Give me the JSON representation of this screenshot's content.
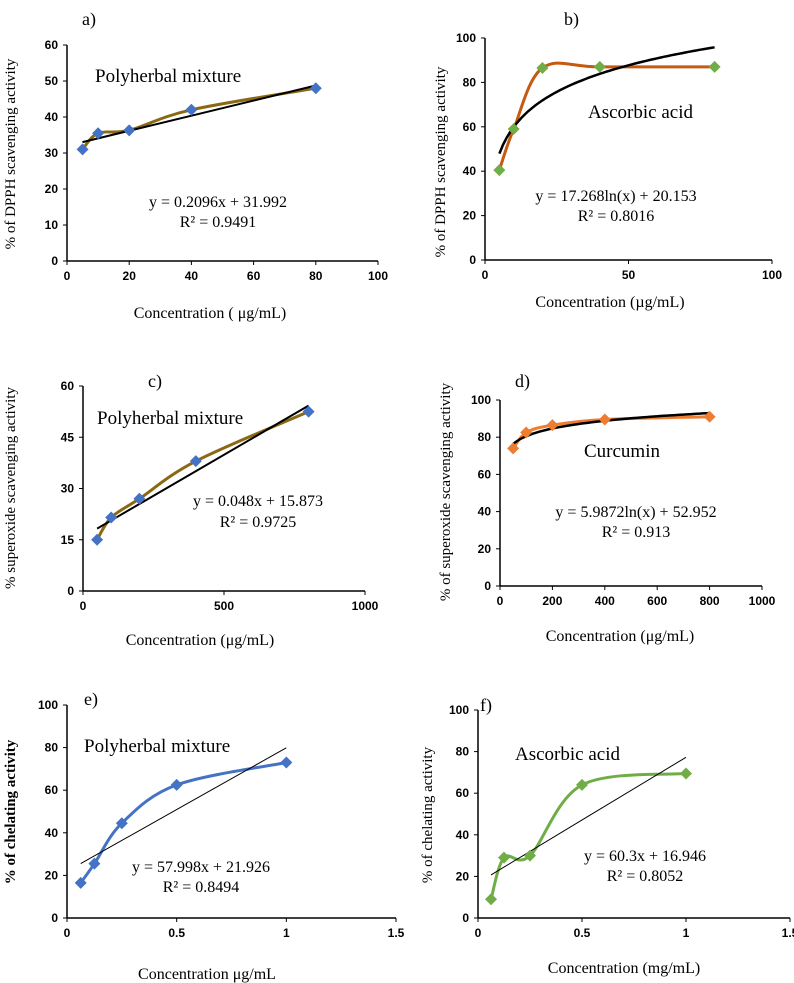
{
  "chart_data": [
    {
      "id": "a",
      "type": "scatter",
      "panel_label": "a)",
      "title": "Polyherbal mixture",
      "xlabel": "Concentration ( μg/mL)",
      "ylabel": "% of DPPH scavenging activity",
      "bold_ylabel": false,
      "xlim": [
        0,
        100
      ],
      "ylim": [
        0,
        60
      ],
      "xticks": [
        0,
        20,
        40,
        60,
        80,
        100
      ],
      "yticks": [
        0,
        10,
        20,
        30,
        40,
        50,
        60
      ],
      "x": [
        5,
        10,
        20,
        40,
        80
      ],
      "y": [
        31,
        35.5,
        36.3,
        42,
        48
      ],
      "smooth": true,
      "trend": {
        "kind": "linear",
        "a": 0.2096,
        "b": 31.992,
        "x_from": 5,
        "x_to": 80
      },
      "equation": "y = 0.2096x + 31.992",
      "r2": "R² = 0.9491",
      "marker": "diamond",
      "marker_color": "#4472c4",
      "curve_color": "#8b6914",
      "trend_color": "#000000",
      "trend_width": 2
    },
    {
      "id": "b",
      "type": "scatter",
      "panel_label": "b)",
      "title": "Ascorbic acid",
      "xlabel": "Concentration (µg/mL)",
      "ylabel": "% of DPPH scavenging activity",
      "bold_ylabel": false,
      "xlim": [
        0,
        100
      ],
      "ylim": [
        0,
        100
      ],
      "xticks": [
        0,
        50,
        100
      ],
      "yticks": [
        0,
        20,
        40,
        60,
        80,
        100
      ],
      "x": [
        5,
        10,
        20,
        40,
        80
      ],
      "y": [
        40.5,
        59,
        86.5,
        87,
        87
      ],
      "smooth": true,
      "trend": {
        "kind": "log",
        "a": 17.268,
        "b": 20.153,
        "x_from": 5,
        "x_to": 80
      },
      "equation": "y = 17.268ln(x) + 20.153",
      "r2": "R² = 0.8016",
      "marker": "diamond",
      "marker_color": "#70ad47",
      "curve_color": "#c55a11",
      "trend_color": "#000000",
      "trend_width": 2.5
    },
    {
      "id": "c",
      "type": "scatter",
      "panel_label": "c)",
      "title": "Polyherbal mixture",
      "xlabel": "Concentration (μg/mL)",
      "ylabel": "% superoxide scavenging activity",
      "bold_ylabel": false,
      "xlim": [
        0,
        1000
      ],
      "ylim": [
        0,
        60
      ],
      "xticks": [
        0,
        500,
        1000
      ],
      "yticks": [
        0,
        15,
        30,
        45,
        60
      ],
      "x": [
        50,
        100,
        200,
        400,
        800
      ],
      "y": [
        15,
        21.5,
        27,
        38,
        52.5
      ],
      "smooth": true,
      "trend": {
        "kind": "linear",
        "a": 0.048,
        "b": 15.873,
        "x_from": 50,
        "x_to": 800
      },
      "equation": "y = 0.048x + 15.873",
      "r2": "R² = 0.9725",
      "marker": "diamond",
      "marker_color": "#4472c4",
      "curve_color": "#8b6914",
      "trend_color": "#000000",
      "trend_width": 2
    },
    {
      "id": "d",
      "type": "scatter",
      "panel_label": "d)",
      "title": "Curcumin",
      "xlabel": "Concentration (μg/mL)",
      "ylabel": "% of superoxide scavenging activity",
      "bold_ylabel": false,
      "xlim": [
        0,
        1000
      ],
      "ylim": [
        0,
        100
      ],
      "xticks": [
        0,
        200,
        400,
        600,
        800,
        1000
      ],
      "yticks": [
        0,
        20,
        40,
        60,
        80,
        100
      ],
      "x": [
        50,
        100,
        200,
        400,
        800
      ],
      "y": [
        74,
        82.5,
        86.5,
        89.5,
        91
      ],
      "smooth": true,
      "trend": {
        "kind": "log",
        "a": 5.9872,
        "b": 52.952,
        "x_from": 50,
        "x_to": 800
      },
      "equation": "y = 5.9872ln(x) + 52.952",
      "r2": "R² = 0.913",
      "marker": "diamond",
      "marker_color": "#ed7d31",
      "curve_color": "#ed7d31",
      "trend_color": "#000000",
      "trend_width": 2.5
    },
    {
      "id": "e",
      "type": "scatter",
      "panel_label": "e)",
      "title": "Polyherbal mixture",
      "xlabel": "Concentration μg/mL",
      "ylabel": "% of chelating activity",
      "bold_ylabel": true,
      "xlim": [
        0,
        1.5
      ],
      "ylim": [
        0,
        100
      ],
      "xticks": [
        0,
        0.5,
        1,
        1.5
      ],
      "yticks": [
        0,
        20,
        40,
        60,
        80,
        100
      ],
      "x": [
        0.0625,
        0.125,
        0.25,
        0.5,
        1
      ],
      "y": [
        16.5,
        25.5,
        44.5,
        62.5,
        73
      ],
      "smooth": true,
      "trend": {
        "kind": "linear",
        "a": 57.998,
        "b": 21.926,
        "x_from": 0.0625,
        "x_to": 1
      },
      "equation": "y = 57.998x + 21.926",
      "r2": "R² = 0.8494",
      "marker": "diamond",
      "marker_color": "#4472c4",
      "curve_color": "#4472c4",
      "trend_color": "#000000",
      "trend_width": 1
    },
    {
      "id": "f",
      "type": "scatter",
      "panel_label": "f)",
      "title": "Ascorbic acid",
      "xlabel": "Concentration (mg/mL)",
      "ylabel": "% of chelating activity",
      "bold_ylabel": false,
      "xlim": [
        0,
        1.5
      ],
      "ylim": [
        0,
        100
      ],
      "xticks": [
        0,
        0.5,
        1,
        1.5
      ],
      "yticks": [
        0,
        20,
        40,
        60,
        80,
        100
      ],
      "x": [
        0.0625,
        0.125,
        0.25,
        0.5,
        1
      ],
      "y": [
        9,
        29,
        30,
        64,
        69.5
      ],
      "smooth": true,
      "trend": {
        "kind": "linear",
        "a": 60.3,
        "b": 16.946,
        "x_from": 0.0625,
        "x_to": 1
      },
      "equation": "y = 60.3x + 16.946",
      "r2": "R² = 0.8052",
      "marker": "diamond",
      "marker_color": "#70ad47",
      "curve_color": "#70ad47",
      "trend_color": "#000000",
      "trend_width": 1
    }
  ]
}
